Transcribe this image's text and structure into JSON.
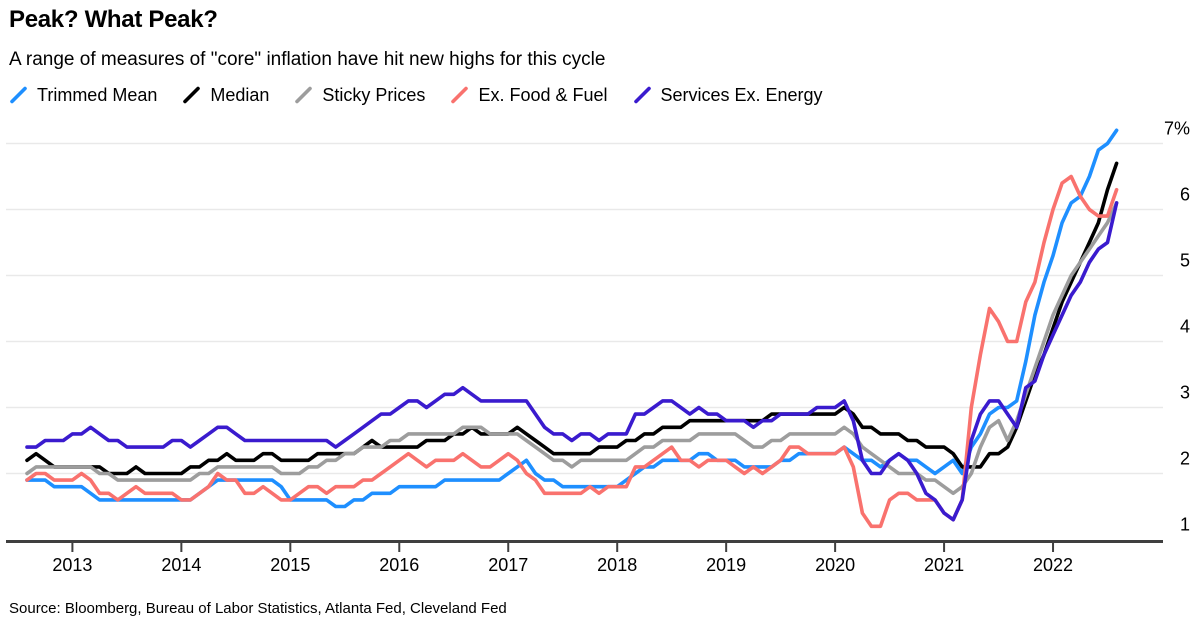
{
  "header": {
    "title": "Peak? What Peak?",
    "subtitle": "A range of measures of \"core\" inflation have hit new highs for this cycle"
  },
  "source": "Source: Bloomberg, Bureau of Labor Statistics, Atlanta Fed, Cleveland Fed",
  "colors": {
    "background": "#ffffff",
    "grid": "#e9e9e9",
    "axis": "#3f3f3f",
    "text": "#000000"
  },
  "chart_data": {
    "type": "line",
    "title": "Peak? What Peak?",
    "x_unit": "month",
    "x_start": "2012-08",
    "x_end": "2022-08",
    "x_tick_labels": [
      "2013",
      "2014",
      "2015",
      "2016",
      "2017",
      "2018",
      "2019",
      "2020",
      "2021",
      "2022"
    ],
    "y_axis": {
      "ticks": [
        1,
        2,
        3,
        4,
        5,
        6,
        7
      ],
      "top_tick_label": "7%",
      "drawn_range": [
        1,
        7
      ]
    },
    "ylim": [
      0.9,
      7.4
    ],
    "grid": "horizontal",
    "legend_position": "top",
    "series": [
      {
        "name": "Trimmed Mean",
        "color": "#1e8fff",
        "values": [
          1.9,
          1.9,
          1.9,
          1.8,
          1.8,
          1.8,
          1.8,
          1.7,
          1.6,
          1.6,
          1.6,
          1.6,
          1.6,
          1.6,
          1.6,
          1.6,
          1.6,
          1.6,
          1.6,
          1.7,
          1.8,
          1.9,
          1.9,
          1.9,
          1.9,
          1.9,
          1.9,
          1.9,
          1.8,
          1.6,
          1.6,
          1.6,
          1.6,
          1.6,
          1.5,
          1.5,
          1.6,
          1.6,
          1.7,
          1.7,
          1.7,
          1.8,
          1.8,
          1.8,
          1.8,
          1.8,
          1.9,
          1.9,
          1.9,
          1.9,
          1.9,
          1.9,
          1.9,
          2.0,
          2.1,
          2.2,
          2.0,
          1.9,
          1.9,
          1.8,
          1.8,
          1.8,
          1.8,
          1.8,
          1.8,
          1.8,
          1.9,
          2.0,
          2.1,
          2.1,
          2.2,
          2.2,
          2.2,
          2.2,
          2.3,
          2.3,
          2.2,
          2.2,
          2.2,
          2.1,
          2.1,
          2.1,
          2.1,
          2.2,
          2.2,
          2.3,
          2.3,
          2.3,
          2.3,
          2.3,
          2.4,
          2.3,
          2.2,
          2.2,
          2.1,
          2.2,
          2.3,
          2.2,
          2.2,
          2.1,
          2.0,
          2.1,
          2.2,
          2.0,
          2.4,
          2.6,
          2.9,
          3.0,
          3.0,
          3.1,
          3.7,
          4.4,
          4.9,
          5.3,
          5.8,
          6.1,
          6.2,
          6.5,
          6.9,
          7.0,
          7.2
        ]
      },
      {
        "name": "Median",
        "color": "#000000",
        "values": [
          2.2,
          2.3,
          2.2,
          2.1,
          2.1,
          2.1,
          2.1,
          2.1,
          2.1,
          2.0,
          2.0,
          2.0,
          2.1,
          2.0,
          2.0,
          2.0,
          2.0,
          2.0,
          2.1,
          2.1,
          2.2,
          2.2,
          2.3,
          2.2,
          2.2,
          2.2,
          2.3,
          2.3,
          2.2,
          2.2,
          2.2,
          2.2,
          2.3,
          2.3,
          2.3,
          2.3,
          2.3,
          2.4,
          2.5,
          2.4,
          2.4,
          2.4,
          2.4,
          2.4,
          2.5,
          2.5,
          2.5,
          2.6,
          2.6,
          2.7,
          2.6,
          2.6,
          2.6,
          2.6,
          2.7,
          2.6,
          2.5,
          2.4,
          2.3,
          2.3,
          2.3,
          2.3,
          2.3,
          2.4,
          2.4,
          2.4,
          2.5,
          2.5,
          2.6,
          2.6,
          2.7,
          2.7,
          2.7,
          2.8,
          2.8,
          2.8,
          2.8,
          2.8,
          2.8,
          2.8,
          2.8,
          2.8,
          2.9,
          2.9,
          2.9,
          2.9,
          2.9,
          2.9,
          2.9,
          2.9,
          3.0,
          2.9,
          2.7,
          2.7,
          2.6,
          2.6,
          2.6,
          2.5,
          2.5,
          2.4,
          2.4,
          2.4,
          2.3,
          2.1,
          2.1,
          2.1,
          2.3,
          2.3,
          2.4,
          2.7,
          3.1,
          3.5,
          3.8,
          4.2,
          4.6,
          4.9,
          5.2,
          5.5,
          5.8,
          6.3,
          6.7
        ]
      },
      {
        "name": "Sticky Prices",
        "color": "#9d9d9d",
        "values": [
          2.0,
          2.1,
          2.1,
          2.1,
          2.1,
          2.1,
          2.1,
          2.1,
          2.0,
          2.0,
          1.9,
          1.9,
          1.9,
          1.9,
          1.9,
          1.9,
          1.9,
          1.9,
          1.9,
          2.0,
          2.0,
          2.1,
          2.1,
          2.1,
          2.1,
          2.1,
          2.1,
          2.1,
          2.0,
          2.0,
          2.0,
          2.1,
          2.1,
          2.2,
          2.2,
          2.3,
          2.3,
          2.4,
          2.4,
          2.4,
          2.5,
          2.5,
          2.6,
          2.6,
          2.6,
          2.6,
          2.6,
          2.6,
          2.7,
          2.7,
          2.7,
          2.6,
          2.6,
          2.6,
          2.6,
          2.5,
          2.4,
          2.3,
          2.2,
          2.2,
          2.1,
          2.2,
          2.2,
          2.2,
          2.2,
          2.2,
          2.2,
          2.3,
          2.4,
          2.4,
          2.5,
          2.5,
          2.5,
          2.5,
          2.6,
          2.6,
          2.6,
          2.6,
          2.6,
          2.5,
          2.4,
          2.4,
          2.5,
          2.5,
          2.6,
          2.6,
          2.6,
          2.6,
          2.6,
          2.6,
          2.7,
          2.6,
          2.4,
          2.3,
          2.2,
          2.1,
          2.0,
          2.0,
          2.0,
          1.9,
          1.9,
          1.8,
          1.7,
          1.8,
          2.0,
          2.4,
          2.7,
          2.8,
          2.5,
          2.8,
          3.2,
          3.6,
          4.0,
          4.4,
          4.7,
          5.0,
          5.2,
          5.4,
          5.6,
          5.8,
          6.1
        ]
      },
      {
        "name": "Ex. Food & Fuel",
        "color": "#f9726e",
        "values": [
          1.9,
          2.0,
          2.0,
          1.9,
          1.9,
          1.9,
          2.0,
          1.9,
          1.7,
          1.7,
          1.6,
          1.7,
          1.8,
          1.7,
          1.7,
          1.7,
          1.7,
          1.6,
          1.6,
          1.7,
          1.8,
          2.0,
          1.9,
          1.9,
          1.7,
          1.7,
          1.8,
          1.7,
          1.6,
          1.6,
          1.7,
          1.8,
          1.8,
          1.7,
          1.8,
          1.8,
          1.8,
          1.9,
          1.9,
          2.0,
          2.1,
          2.2,
          2.3,
          2.2,
          2.1,
          2.2,
          2.2,
          2.2,
          2.3,
          2.2,
          2.1,
          2.1,
          2.2,
          2.3,
          2.2,
          2.0,
          1.9,
          1.7,
          1.7,
          1.7,
          1.7,
          1.7,
          1.8,
          1.7,
          1.8,
          1.8,
          1.8,
          2.1,
          2.1,
          2.2,
          2.3,
          2.4,
          2.2,
          2.2,
          2.1,
          2.2,
          2.2,
          2.2,
          2.1,
          2.0,
          2.1,
          2.0,
          2.1,
          2.2,
          2.4,
          2.4,
          2.3,
          2.3,
          2.3,
          2.3,
          2.4,
          2.1,
          1.4,
          1.2,
          1.2,
          1.6,
          1.7,
          1.7,
          1.6,
          1.6,
          1.6,
          1.4,
          1.3,
          1.6,
          3.0,
          3.8,
          4.5,
          4.3,
          4.0,
          4.0,
          4.6,
          4.9,
          5.5,
          6.0,
          6.4,
          6.5,
          6.2,
          6.0,
          5.9,
          5.9,
          6.3
        ]
      },
      {
        "name": "Services Ex. Energy",
        "color": "#3a1bce",
        "values": [
          2.4,
          2.4,
          2.5,
          2.5,
          2.5,
          2.6,
          2.6,
          2.7,
          2.6,
          2.5,
          2.5,
          2.4,
          2.4,
          2.4,
          2.4,
          2.4,
          2.5,
          2.5,
          2.4,
          2.5,
          2.6,
          2.7,
          2.7,
          2.6,
          2.5,
          2.5,
          2.5,
          2.5,
          2.5,
          2.5,
          2.5,
          2.5,
          2.5,
          2.5,
          2.4,
          2.5,
          2.6,
          2.7,
          2.8,
          2.9,
          2.9,
          3.0,
          3.1,
          3.1,
          3.0,
          3.1,
          3.2,
          3.2,
          3.3,
          3.2,
          3.1,
          3.1,
          3.1,
          3.1,
          3.1,
          3.1,
          2.9,
          2.7,
          2.6,
          2.6,
          2.5,
          2.6,
          2.6,
          2.5,
          2.6,
          2.6,
          2.6,
          2.9,
          2.9,
          3.0,
          3.1,
          3.1,
          3.0,
          2.9,
          3.0,
          2.9,
          2.9,
          2.8,
          2.8,
          2.8,
          2.7,
          2.8,
          2.8,
          2.9,
          2.9,
          2.9,
          2.9,
          3.0,
          3.0,
          3.0,
          3.1,
          2.8,
          2.2,
          2.0,
          2.0,
          2.2,
          2.3,
          2.2,
          2.0,
          1.7,
          1.6,
          1.4,
          1.3,
          1.6,
          2.5,
          2.9,
          3.1,
          3.1,
          2.9,
          2.7,
          3.3,
          3.4,
          3.8,
          4.1,
          4.4,
          4.7,
          4.9,
          5.2,
          5.4,
          5.5,
          6.1
        ]
      }
    ]
  }
}
